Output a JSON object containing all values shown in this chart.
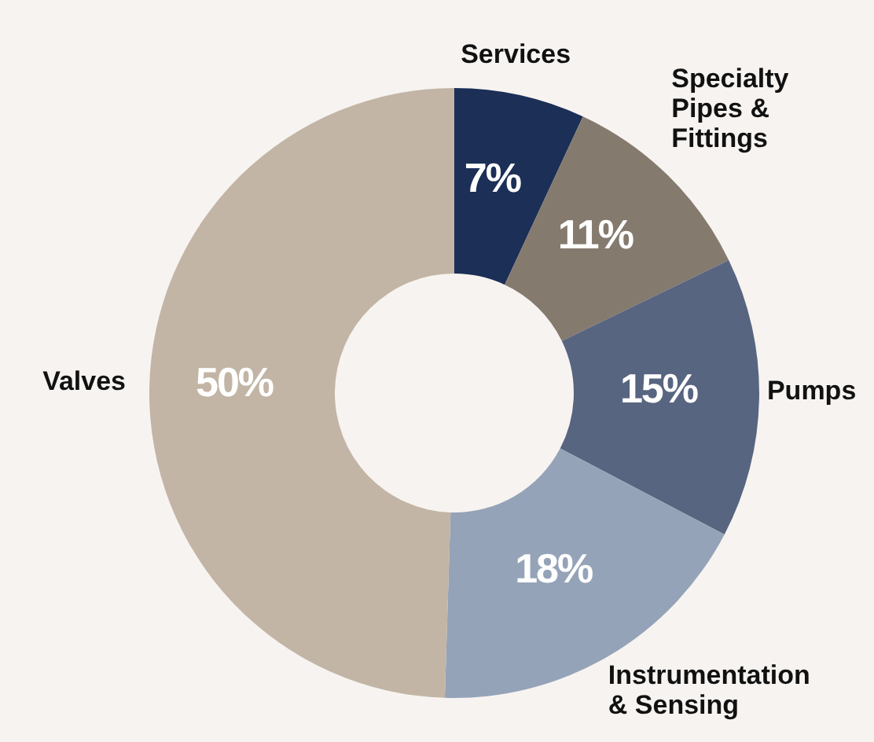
{
  "chart_data": {
    "type": "donut",
    "categories": [
      "Services",
      "Specialty Pipes & Fittings",
      "Pumps",
      "Instrumentation & Sensing",
      "Valves"
    ],
    "values": [
      7,
      11,
      15,
      18,
      50
    ],
    "value_labels": [
      "7%",
      "11%",
      "15%",
      "18%",
      "50%"
    ],
    "colors": [
      "#1b2f57",
      "#857a6e",
      "#586580",
      "#95a3b8",
      "#c2b5a5"
    ]
  }
}
